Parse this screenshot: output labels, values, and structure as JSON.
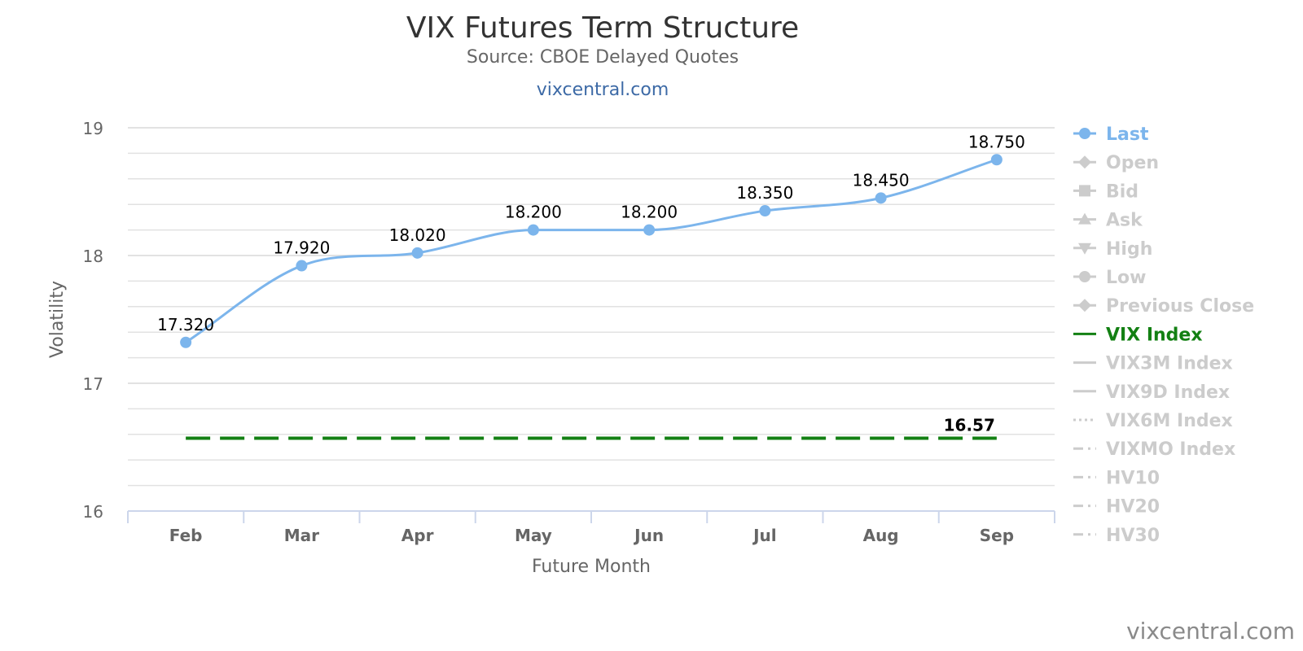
{
  "chart_data": {
    "type": "line",
    "title": "VIX Futures Term Structure",
    "subtitle": "Source: CBOE Delayed Quotes",
    "link_text": "vixcentral.com",
    "xlabel": "Future Month",
    "ylabel": "Volatility",
    "categories": [
      "Feb",
      "Mar",
      "Apr",
      "May",
      "Jun",
      "Jul",
      "Aug",
      "Sep"
    ],
    "ylim": [
      16,
      19
    ],
    "y_ticks": [
      16,
      17,
      18,
      19
    ],
    "grid": true,
    "legend_position": "right",
    "series": [
      {
        "name": "Last",
        "values": [
          17.32,
          17.92,
          18.02,
          18.2,
          18.2,
          18.35,
          18.45,
          18.75
        ],
        "labels": [
          "17.320",
          "17.920",
          "18.020",
          "18.200",
          "18.200",
          "18.350",
          "18.450",
          "18.750"
        ],
        "color": "#7cb5ec",
        "style": "smooth-line-markers"
      },
      {
        "name": "VIX Index",
        "value": 16.57,
        "label": "16.57",
        "color": "#138013",
        "style": "dashed"
      }
    ],
    "legend": [
      {
        "name": "Last",
        "active": true,
        "symbol": "circle",
        "color": "#7cb5ec"
      },
      {
        "name": "Open",
        "active": false,
        "symbol": "diamond"
      },
      {
        "name": "Bid",
        "active": false,
        "symbol": "square"
      },
      {
        "name": "Ask",
        "active": false,
        "symbol": "triangle"
      },
      {
        "name": "High",
        "active": false,
        "symbol": "triangle-down"
      },
      {
        "name": "Low",
        "active": false,
        "symbol": "circle"
      },
      {
        "name": "Previous Close",
        "active": false,
        "symbol": "diamond"
      },
      {
        "name": "VIX Index",
        "active": true,
        "symbol": "line",
        "color": "#138013"
      },
      {
        "name": "VIX3M Index",
        "active": false,
        "symbol": "line"
      },
      {
        "name": "VIX9D Index",
        "active": false,
        "symbol": "line"
      },
      {
        "name": "VIX6M Index",
        "active": false,
        "symbol": "dotted"
      },
      {
        "name": "VIXMO Index",
        "active": false,
        "symbol": "dashdot"
      },
      {
        "name": "HV10",
        "active": false,
        "symbol": "dashdot"
      },
      {
        "name": "HV20",
        "active": false,
        "symbol": "dashdot"
      },
      {
        "name": "HV30",
        "active": false,
        "symbol": "dashdot"
      }
    ]
  },
  "watermark": "vixcentral.com"
}
